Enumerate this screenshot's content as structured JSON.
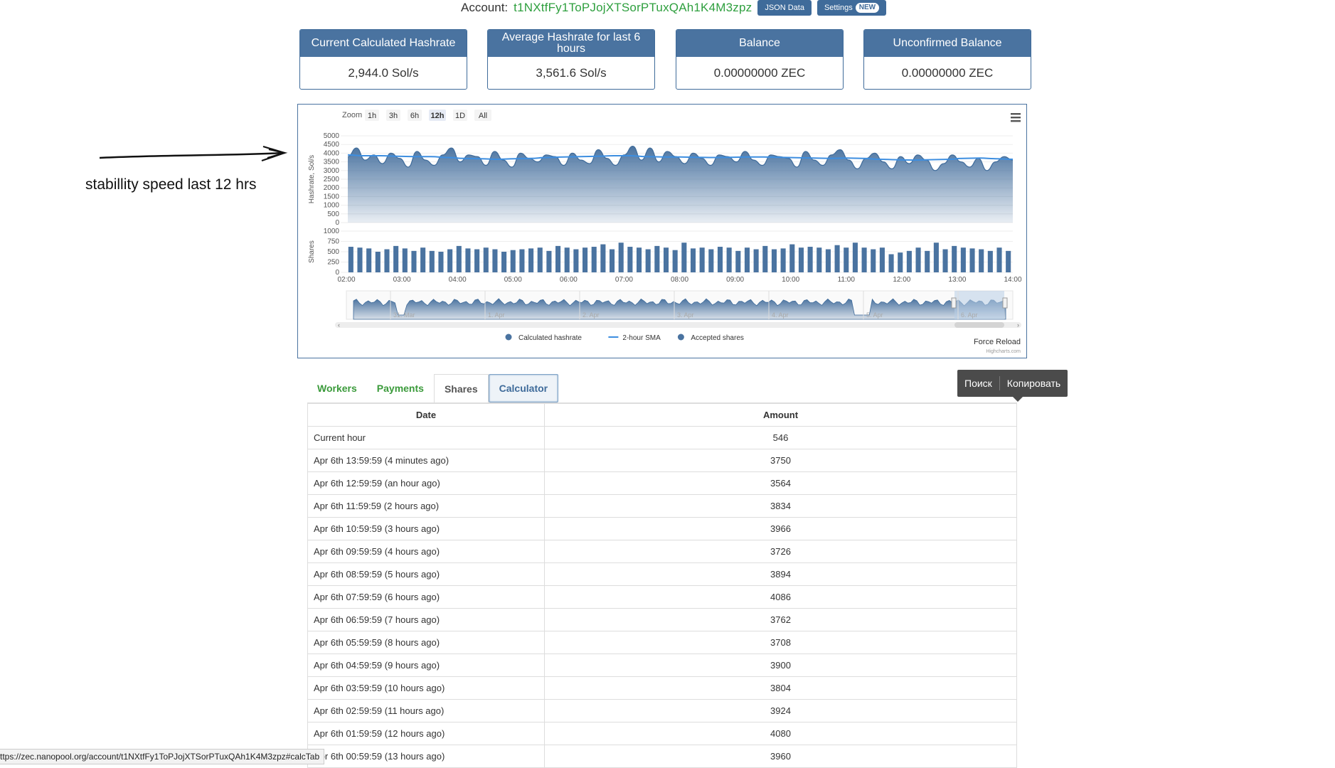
{
  "account": {
    "label": "Account:",
    "id": "t1NXtfFy1ToPJojXTSorPTuxQAh1K4M3zpz",
    "json_button": "JSON Data",
    "settings_button": "Settings",
    "settings_badge": "NEW"
  },
  "stats": [
    {
      "title": "Current Calculated Hashrate",
      "value": "2,944.0 Sol/s"
    },
    {
      "title": "Average Hashrate for last 6 hours",
      "value": "3,561.6 Sol/s"
    },
    {
      "title": "Balance",
      "value": "0.00000000 ZEC"
    },
    {
      "title": "Unconfirmed Balance",
      "value": "0.00000000 ZEC"
    }
  ],
  "annotation": "stabillity speed last 12 hrs",
  "chart_panel": {
    "zoom_label": "Zoom",
    "zoom_buttons": [
      "1h",
      "3h",
      "6h",
      "12h",
      "1D",
      "All"
    ],
    "zoom_selected": "12h",
    "menu_icon": "hamburger-icon",
    "force_reload": "Force Reload",
    "credits": "Highcharts.com",
    "navigator_labels": [
      "31. Mar",
      "1. Apr",
      "2. Apr",
      "3. Apr",
      "4. Apr",
      "5. Apr",
      "6. Apr"
    ]
  },
  "chart_data": {
    "type": "area",
    "x": [
      "02:00",
      "03:00",
      "04:00",
      "05:00",
      "06:00",
      "07:00",
      "08:00",
      "09:00",
      "10:00",
      "11:00",
      "12:00",
      "13:00",
      "14:00"
    ],
    "panes": [
      {
        "ylabel": "Hashrate, Sol/s",
        "ylim": [
          0,
          5000
        ],
        "yticks": [
          5000,
          4500,
          4000,
          3500,
          3000,
          2500,
          2000,
          1500,
          1000,
          500,
          0
        ],
        "series": [
          {
            "name": "Calculated hashrate",
            "type": "area",
            "color": "#4a73a0",
            "values": [
              3800,
              4300,
              3600,
              3900,
              3400,
              4000,
              3700,
              3200,
              4100,
              3600,
              3300,
              3900,
              4300,
              3500,
              3900,
              3800,
              3300,
              4100,
              3600,
              3200,
              4000,
              3700,
              3500,
              3900,
              3800,
              3300,
              4000,
              3600,
              3400,
              4200,
              3700,
              3300,
              3900,
              4400,
              3600,
              4300,
              3500,
              4100,
              3800,
              3400,
              4000,
              3700,
              3300,
              3900,
              3800,
              3500,
              4100,
              3600,
              3300,
              3900,
              3800,
              3700,
              3200,
              4100,
              3600,
              3300,
              3900,
              4200,
              3600,
              3100,
              3700,
              4000,
              3500,
              3100,
              3800,
              3400,
              3900,
              3600,
              3000,
              3400,
              3900,
              3500,
              3200,
              3700,
              3000,
              3500,
              3800,
              3600
            ]
          },
          {
            "name": "2-hour SMA",
            "type": "line",
            "color": "#3d8ee0",
            "values": [
              3900,
              3850,
              3850,
              3820,
              3800,
              3800,
              3750,
              3700,
              3680,
              3650,
              3680,
              3700,
              3750,
              3780,
              3800,
              3820,
              3850,
              3850,
              3800,
              3780,
              3780,
              3760,
              3750,
              3760,
              3780,
              3780,
              3760,
              3740,
              3720,
              3700,
              3720,
              3700,
              3650,
              3620,
              3600,
              3620,
              3640,
              3700,
              3720,
              3680,
              3650
            ]
          }
        ]
      },
      {
        "ylabel": "Shares",
        "ylim": [
          0,
          1000
        ],
        "yticks": [
          1000,
          750,
          500,
          250,
          0
        ],
        "series": [
          {
            "name": "Accepted shares",
            "type": "column",
            "color": "#4a73a0",
            "values": [
              620,
              600,
              580,
              500,
              560,
              640,
              580,
              520,
              600,
              520,
              500,
              560,
              640,
              580,
              560,
              600,
              560,
              500,
              540,
              560,
              580,
              600,
              520,
              640,
              600,
              560,
              600,
              620,
              680,
              560,
              720,
              620,
              600,
              560,
              640,
              600,
              540,
              720,
              580,
              600,
              560,
              620,
              600,
              520,
              600,
              560,
              640,
              560,
              580,
              680,
              600,
              620,
              600,
              560,
              660,
              600,
              720,
              600,
              560,
              600,
              440,
              480,
              520,
              600,
              520,
              720,
              560,
              640,
              600,
              580,
              560,
              520,
              600,
              520
            ]
          }
        ]
      }
    ],
    "legend": [
      "Calculated hashrate",
      "2-hour SMA",
      "Accepted shares"
    ],
    "legend_position": "bottom-center"
  },
  "tabs": [
    "Workers",
    "Payments",
    "Shares",
    "Calculator"
  ],
  "tabs_active": "Calculator",
  "context_menu": {
    "search": "Поиск",
    "copy": "Копировать"
  },
  "table": {
    "headers": [
      "Date",
      "Amount"
    ],
    "rows": [
      [
        "Current hour",
        "546"
      ],
      [
        "Apr 6th 13:59:59 (4 minutes ago)",
        "3750"
      ],
      [
        "Apr 6th 12:59:59 (an hour ago)",
        "3564"
      ],
      [
        "Apr 6th 11:59:59 (2 hours ago)",
        "3834"
      ],
      [
        "Apr 6th 10:59:59 (3 hours ago)",
        "3966"
      ],
      [
        "Apr 6th 09:59:59 (4 hours ago)",
        "3726"
      ],
      [
        "Apr 6th 08:59:59 (5 hours ago)",
        "3894"
      ],
      [
        "Apr 6th 07:59:59 (6 hours ago)",
        "4086"
      ],
      [
        "Apr 6th 06:59:59 (7 hours ago)",
        "3762"
      ],
      [
        "Apr 6th 05:59:59 (8 hours ago)",
        "3708"
      ],
      [
        "Apr 6th 04:59:59 (9 hours ago)",
        "3900"
      ],
      [
        "Apr 6th 03:59:59 (10 hours ago)",
        "3804"
      ],
      [
        "Apr 6th 02:59:59 (11 hours ago)",
        "3924"
      ],
      [
        "Apr 6th 01:59:59 (12 hours ago)",
        "4080"
      ],
      [
        "Apr 6th 00:59:59 (13 hours ago)",
        "3960"
      ]
    ]
  },
  "status_url": "ttps://zec.nanopool.org/account/t1NXtfFy1ToPJojXTSorPTuxQAh1K4M3zpz#calcTab"
}
